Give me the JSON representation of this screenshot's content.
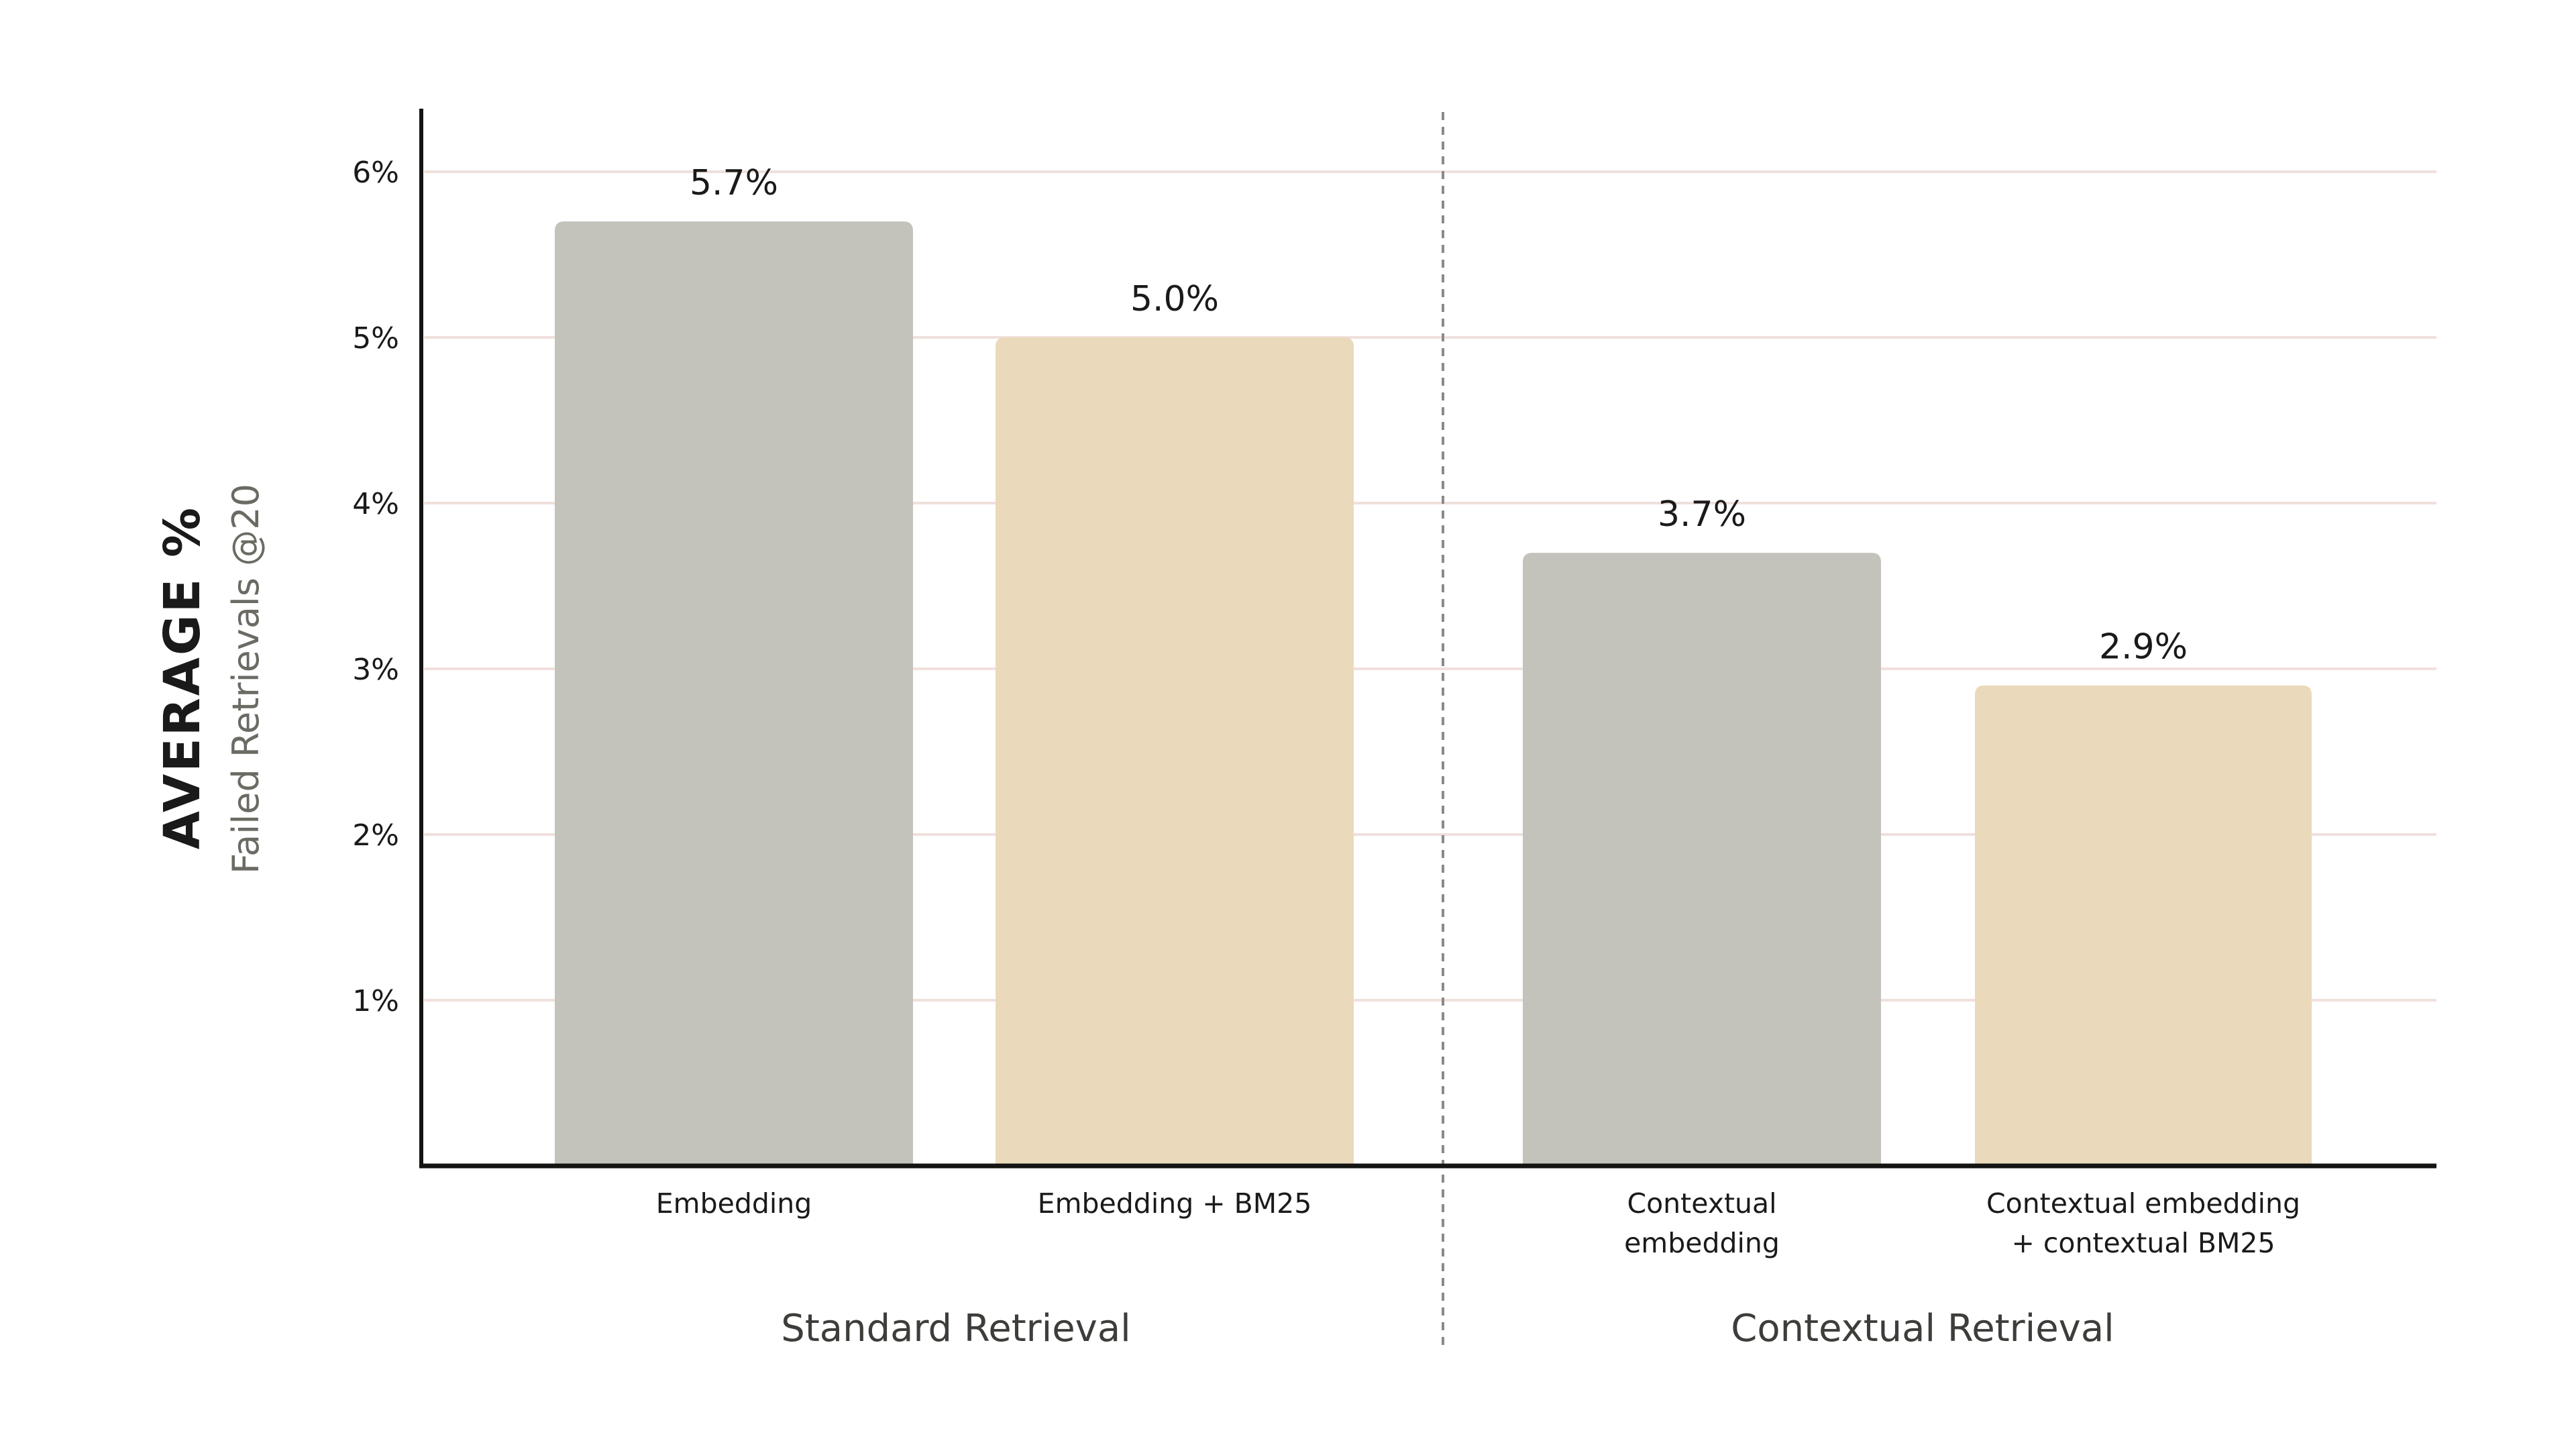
{
  "chart_data": {
    "type": "bar",
    "categories": [
      "Embedding",
      "Embedding + BM25",
      "Contextual embedding",
      "Contextual embedding + contextual BM25"
    ],
    "category_label_lines": [
      [
        "Embedding"
      ],
      [
        "Embedding + BM25"
      ],
      [
        "Contextual",
        "embedding"
      ],
      [
        "Contextual embedding",
        "+ contextual BM25"
      ]
    ],
    "values": [
      5.7,
      5.0,
      3.7,
      2.9
    ],
    "value_labels": [
      "5.7%",
      "5.0%",
      "3.7%",
      "2.9%"
    ],
    "bar_colors": [
      "#c3c3bb",
      "#ead9bb",
      "#c3c3bb",
      "#ead9bb"
    ],
    "groups": [
      {
        "label": "Standard Retrieval",
        "categories": [
          0,
          1
        ]
      },
      {
        "label": "Contextual Retrieval",
        "categories": [
          2,
          3
        ]
      }
    ],
    "ylabel": "AVERAGE %",
    "ylabel_sub": "Failed Retrievals @20",
    "xlabel": "",
    "ylim": [
      0,
      6.4
    ],
    "yticks": [
      1,
      2,
      3,
      4,
      5,
      6
    ],
    "ytick_labels": [
      "1%",
      "2%",
      "3%",
      "4%",
      "5%",
      "6%"
    ],
    "grid": true,
    "grid_color": "#f0e0dc",
    "legend": "none"
  }
}
